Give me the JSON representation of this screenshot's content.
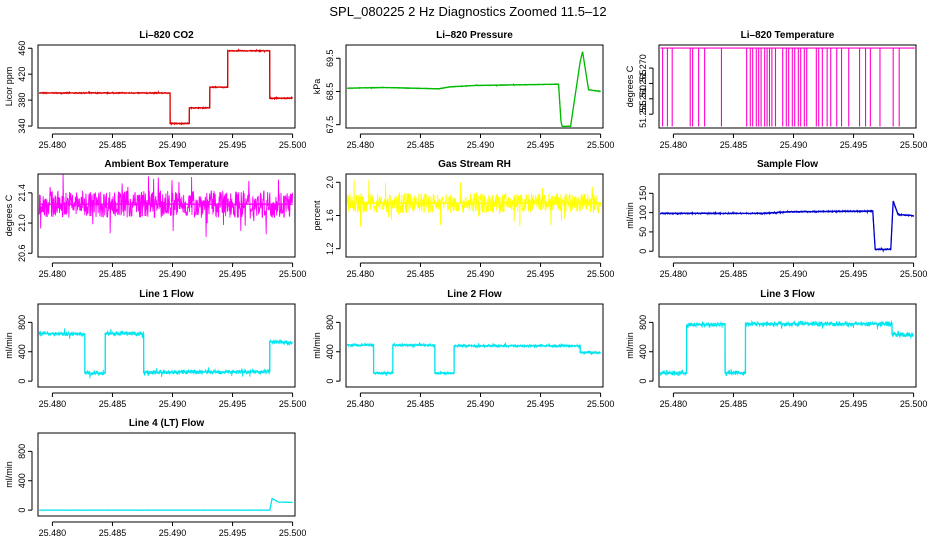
{
  "page_title": "SPL_080225  2 Hz Diagnostics Zoomed 11.5–12",
  "chart_data": [
    {
      "type": "line",
      "title": "Li–820 CO2",
      "ylabel": "Licor ppm",
      "xlim": [
        25.4788,
        25.5002
      ],
      "ylim": [
        337,
        465
      ],
      "x_ticks": [
        25.48,
        25.485,
        25.49,
        25.495,
        25.5
      ],
      "x_tick_labels": [
        "25.480",
        "25.485",
        "25.490",
        "25.495",
        "25.500"
      ],
      "y_ticks": [
        340,
        380,
        420,
        460
      ],
      "y_tick_labels": [
        "340",
        "380",
        "420",
        "460"
      ],
      "color": "#dd0000",
      "noise": 1.0,
      "x": [
        25.4789,
        25.4898,
        25.4898,
        25.4914,
        25.4914,
        25.4931,
        25.4931,
        25.4946,
        25.4946,
        25.4981,
        25.4981,
        25.5
      ],
      "y": [
        391,
        391,
        344,
        344,
        368,
        368,
        400,
        400,
        456,
        456,
        383,
        383
      ]
    },
    {
      "type": "line",
      "title": "Li–820 Pressure",
      "ylabel": "kPa",
      "xlim": [
        25.4788,
        25.5002
      ],
      "ylim": [
        67.4,
        69.9
      ],
      "x_ticks": [
        25.48,
        25.485,
        25.49,
        25.495,
        25.5
      ],
      "x_tick_labels": [
        "25.480",
        "25.485",
        "25.490",
        "25.495",
        "25.500"
      ],
      "y_ticks": [
        67.5,
        68.5,
        69.5
      ],
      "y_tick_labels": [
        "67.5",
        "68.5",
        "69.5"
      ],
      "color": "#00bb00",
      "noise": 0.012,
      "x": [
        25.4789,
        25.482,
        25.4865,
        25.4875,
        25.4895,
        25.4965,
        25.4967,
        25.4968,
        25.4975,
        25.4983,
        25.4985,
        25.499,
        25.5
      ],
      "y": [
        68.6,
        68.62,
        68.58,
        68.64,
        68.68,
        68.72,
        67.6,
        67.45,
        67.45,
        69.4,
        69.7,
        68.55,
        68.5
      ]
    },
    {
      "type": "line",
      "title": "Li–820 Temperature",
      "ylabel": "degrees C",
      "xlim": [
        25.4788,
        25.5002
      ],
      "ylim": [
        51.2505,
        51.2775
      ],
      "x_ticks": [
        25.48,
        25.485,
        25.49,
        25.495,
        25.5
      ],
      "x_tick_labels": [
        "25.480",
        "25.485",
        "25.490",
        "25.495",
        "25.500"
      ],
      "y_ticks": [
        51.255,
        51.26,
        51.265,
        51.27
      ],
      "y_tick_labels": [
        "51.255",
        "51.260",
        "51.265",
        "51.270"
      ],
      "color": "#ff00cc",
      "base": 51.2765,
      "low": 51.251,
      "spikes": [
        25.4791,
        25.4795,
        25.4799,
        25.4814,
        25.4816,
        25.4821,
        25.4826,
        25.484,
        25.4861,
        25.4864,
        25.4866,
        25.4869,
        25.4871,
        25.4873,
        25.4876,
        25.4878,
        25.488,
        25.4882,
        25.4885,
        25.4891,
        25.4894,
        25.4896,
        25.4899,
        25.4901,
        25.4904,
        25.4906,
        25.4909,
        25.4911,
        25.4919,
        25.4921,
        25.4924,
        25.4928,
        25.4931,
        25.4936,
        25.494,
        25.4946,
        25.4955,
        25.496,
        25.4964,
        25.4972,
        25.4983,
        25.4988
      ]
    },
    {
      "type": "line",
      "title": "Ambient Box Temperature",
      "ylabel": "degrees C",
      "xlim": [
        25.4788,
        25.5002
      ],
      "ylim": [
        20.55,
        21.65
      ],
      "x_ticks": [
        25.48,
        25.485,
        25.49,
        25.495,
        25.5
      ],
      "x_tick_labels": [
        "25.480",
        "25.485",
        "25.490",
        "25.495",
        "25.500"
      ],
      "y_ticks": [
        20.6,
        21.0,
        21.4
      ],
      "y_tick_labels": [
        "20.6",
        "21.0",
        "21.4"
      ],
      "color": "#ff00ff",
      "noise": 0.18,
      "x": [
        25.4789,
        25.5
      ],
      "y": [
        21.25,
        21.25
      ]
    },
    {
      "type": "line",
      "title": "Gas Stream RH",
      "ylabel": "percent",
      "xlim": [
        25.4788,
        25.5002
      ],
      "ylim": [
        1.1,
        2.1
      ],
      "x_ticks": [
        25.48,
        25.485,
        25.49,
        25.495,
        25.5
      ],
      "x_tick_labels": [
        "25.480",
        "25.485",
        "25.490",
        "25.495",
        "25.500"
      ],
      "y_ticks": [
        1.2,
        1.6,
        2.0
      ],
      "y_tick_labels": [
        "1.2",
        "1.6",
        "2.0"
      ],
      "color": "#ffff00",
      "noise": 0.12,
      "x": [
        25.4789,
        25.5
      ],
      "y": [
        1.75,
        1.75
      ]
    },
    {
      "type": "line",
      "title": "Sample Flow",
      "ylabel": "ml/min",
      "xlim": [
        25.4788,
        25.5002
      ],
      "ylim": [
        -15,
        200
      ],
      "x_ticks": [
        25.48,
        25.485,
        25.49,
        25.495,
        25.5
      ],
      "x_tick_labels": [
        "25.480",
        "25.485",
        "25.490",
        "25.495",
        "25.500"
      ],
      "y_ticks": [
        0,
        50,
        100,
        150
      ],
      "y_tick_labels": [
        "0",
        "50",
        "100",
        "150"
      ],
      "color": "#0000cc",
      "noise": 2.0,
      "x": [
        25.4789,
        25.4875,
        25.4895,
        25.4966,
        25.4968,
        25.4981,
        25.4983,
        25.4987,
        25.5
      ],
      "y": [
        98,
        98,
        102,
        104,
        5,
        5,
        130,
        95,
        92
      ]
    },
    {
      "type": "line",
      "title": "Line 1 Flow",
      "ylabel": "ml/min",
      "xlim": [
        25.4788,
        25.5002
      ],
      "ylim": [
        -80,
        1050
      ],
      "x_ticks": [
        25.48,
        25.485,
        25.49,
        25.495,
        25.5
      ],
      "x_tick_labels": [
        "25.480",
        "25.485",
        "25.490",
        "25.495",
        "25.500"
      ],
      "y_ticks": [
        0,
        400,
        800
      ],
      "y_tick_labels": [
        "0",
        "400",
        "800"
      ],
      "color": "#00e5ee",
      "noise": 30,
      "x": [
        25.4789,
        25.4827,
        25.4827,
        25.4844,
        25.4844,
        25.4876,
        25.4876,
        25.4981,
        25.4981,
        25.5
      ],
      "y": [
        650,
        640,
        110,
        110,
        650,
        640,
        120,
        130,
        540,
        520
      ]
    },
    {
      "type": "line",
      "title": "Line 2 Flow",
      "ylabel": "ml/min",
      "xlim": [
        25.4788,
        25.5002
      ],
      "ylim": [
        -80,
        1050
      ],
      "x_ticks": [
        25.48,
        25.485,
        25.49,
        25.495,
        25.5
      ],
      "x_tick_labels": [
        "25.480",
        "25.485",
        "25.490",
        "25.495",
        "25.500"
      ],
      "y_ticks": [
        0,
        400,
        800
      ],
      "y_tick_labels": [
        "0",
        "400",
        "800"
      ],
      "color": "#00e5ee",
      "noise": 18,
      "x": [
        25.4789,
        25.4811,
        25.4811,
        25.4827,
        25.4827,
        25.4862,
        25.4862,
        25.4878,
        25.4878,
        25.4983,
        25.4983,
        25.5
      ],
      "y": [
        490,
        490,
        110,
        110,
        490,
        490,
        110,
        110,
        480,
        480,
        390,
        390
      ]
    },
    {
      "type": "line",
      "title": "Line 3 Flow",
      "ylabel": "ml/min",
      "xlim": [
        25.4788,
        25.5002
      ],
      "ylim": [
        -80,
        1050
      ],
      "x_ticks": [
        25.48,
        25.485,
        25.49,
        25.495,
        25.5
      ],
      "x_tick_labels": [
        "25.480",
        "25.485",
        "25.490",
        "25.495",
        "25.500"
      ],
      "y_ticks": [
        0,
        400,
        800
      ],
      "y_tick_labels": [
        "0",
        "400",
        "800"
      ],
      "color": "#00e5ee",
      "noise": 35,
      "x": [
        25.4789,
        25.4811,
        25.4811,
        25.4843,
        25.4843,
        25.486,
        25.486,
        25.4982,
        25.4982,
        25.5
      ],
      "y": [
        110,
        110,
        760,
        780,
        110,
        110,
        780,
        780,
        640,
        620
      ]
    },
    {
      "type": "line",
      "title": "Line 4 (LT) Flow",
      "ylabel": "ml/min",
      "xlim": [
        25.4788,
        25.5002
      ],
      "ylim": [
        -80,
        1050
      ],
      "x_ticks": [
        25.48,
        25.485,
        25.49,
        25.495,
        25.5
      ],
      "x_tick_labels": [
        "25.480",
        "25.485",
        "25.490",
        "25.495",
        "25.500"
      ],
      "y_ticks": [
        0,
        400,
        800
      ],
      "y_tick_labels": [
        "0",
        "400",
        "800"
      ],
      "color": "#00e5ee",
      "noise": 2,
      "x": [
        25.4789,
        25.4981,
        25.4983,
        25.4988,
        25.5
      ],
      "y": [
        0,
        0,
        160,
        110,
        105
      ]
    }
  ]
}
